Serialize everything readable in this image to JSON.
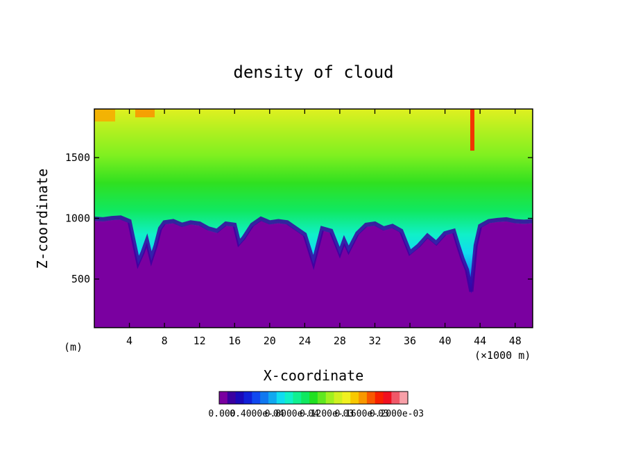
{
  "chart_data": {
    "type": "heatmap",
    "title": "density of cloud",
    "xlabel": "X-coordinate",
    "ylabel": "Z-coordinate",
    "x_unit_left": "(m)",
    "x_unit_right": "(×1000 m)",
    "xlim": [
      0,
      50
    ],
    "ylim": [
      100,
      1900
    ],
    "x_ticks": [
      4,
      8,
      12,
      16,
      20,
      24,
      28,
      32,
      36,
      40,
      44,
      48
    ],
    "x_tick_labels": [
      "4",
      "8",
      "12",
      "16",
      "20",
      "24",
      "28",
      "32",
      "36",
      "40",
      "44",
      "48"
    ],
    "y_ticks": [
      500,
      1000,
      1500
    ],
    "y_tick_labels": [
      "500",
      "1000",
      "1500"
    ],
    "grid": false,
    "cloud_base": [
      [
        0,
        980
      ],
      [
        1,
        975
      ],
      [
        2,
        985
      ],
      [
        3,
        990
      ],
      [
        4,
        960
      ],
      [
        5,
        620
      ],
      [
        5.5,
        700
      ],
      [
        6,
        800
      ],
      [
        6.5,
        650
      ],
      [
        7,
        760
      ],
      [
        7.5,
        900
      ],
      [
        8,
        950
      ],
      [
        9,
        960
      ],
      [
        10,
        930
      ],
      [
        11,
        950
      ],
      [
        12,
        940
      ],
      [
        13,
        900
      ],
      [
        14,
        880
      ],
      [
        15,
        940
      ],
      [
        16,
        930
      ],
      [
        16.5,
        780
      ],
      [
        17,
        820
      ],
      [
        18,
        930
      ],
      [
        19,
        980
      ],
      [
        20,
        950
      ],
      [
        21,
        960
      ],
      [
        22,
        950
      ],
      [
        23,
        900
      ],
      [
        24,
        850
      ],
      [
        25,
        620
      ],
      [
        25.5,
        760
      ],
      [
        26,
        900
      ],
      [
        27,
        880
      ],
      [
        28,
        700
      ],
      [
        28.5,
        800
      ],
      [
        29,
        720
      ],
      [
        30,
        860
      ],
      [
        31,
        930
      ],
      [
        32,
        940
      ],
      [
        33,
        900
      ],
      [
        34,
        920
      ],
      [
        35,
        880
      ],
      [
        36,
        700
      ],
      [
        37,
        760
      ],
      [
        38,
        840
      ],
      [
        39,
        780
      ],
      [
        40,
        860
      ],
      [
        41,
        880
      ],
      [
        41.5,
        760
      ],
      [
        42,
        650
      ],
      [
        42.5,
        560
      ],
      [
        43,
        380
      ],
      [
        43.5,
        760
      ],
      [
        44,
        920
      ],
      [
        45,
        960
      ],
      [
        46,
        970
      ],
      [
        47,
        975
      ],
      [
        48,
        960
      ],
      [
        49,
        955
      ],
      [
        50,
        960
      ]
    ],
    "color_scale": {
      "colors": [
        "#7a00a0",
        "#3a00a0",
        "#1a08b8",
        "#1020d8",
        "#1048f0",
        "#1078f0",
        "#10a8f0",
        "#10dcf0",
        "#10f0c8",
        "#10f090",
        "#10e860",
        "#20e020",
        "#60e820",
        "#a0f020",
        "#d0f020",
        "#f0f020",
        "#f8c800",
        "#f89800",
        "#f85800",
        "#f82000",
        "#f01020",
        "#f05868",
        "#f8a0a8"
      ],
      "tick_labels": [
        "0.000",
        "0.4000e-04",
        "0.8000e-04",
        "0.1200e-03",
        "0.1600e-03",
        "0.2000e-03"
      ]
    }
  }
}
